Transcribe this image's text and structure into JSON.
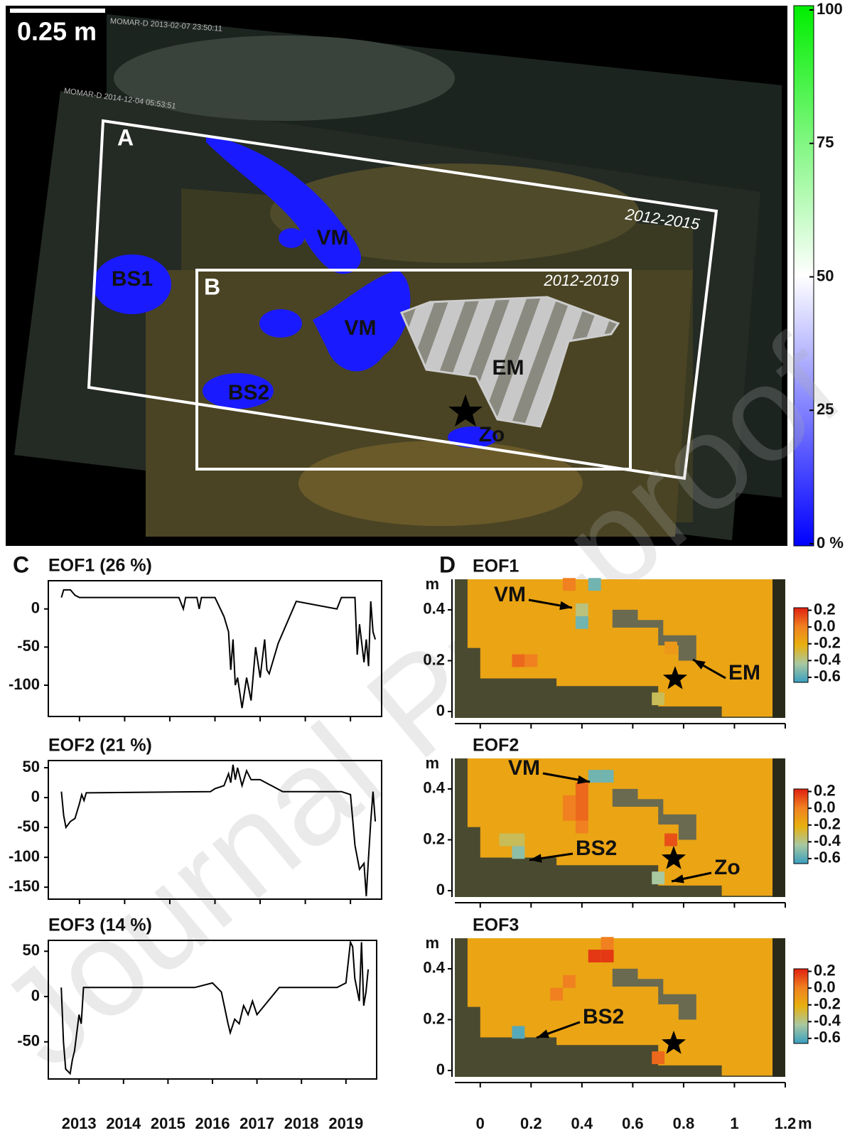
{
  "scale_bar": "0.25 m",
  "photo": {
    "timestamps": [
      "MOMAR-D 2013-02-07 23:50:11",
      "MOMAR-D 2014-12-04 05:53:51"
    ],
    "regions": [
      {
        "label": "A",
        "period": "2012-2015"
      },
      {
        "label": "B",
        "period": "2012-2019"
      }
    ],
    "labels": [
      "VM",
      "BS1",
      "VM",
      "BS2",
      "EM",
      "Zo"
    ],
    "colorbar": {
      "lim": [
        0,
        100
      ],
      "ticks": [
        100,
        75,
        50,
        25,
        {
          "value": 0,
          "label": "0 %"
        }
      ]
    }
  },
  "panel_labels": [
    "C",
    "D"
  ],
  "chart_data": [
    {
      "type": "line",
      "title": "EOF1 (26 %)",
      "color": "#000000",
      "xtick_labels": false,
      "x": [
        2012.6,
        2012.65,
        2012.8,
        2012.9,
        2013.0,
        2015.2,
        2015.3,
        2015.35,
        2015.6,
        2015.65,
        2015.7,
        2016.0,
        2016.2,
        2016.3,
        2016.35,
        2016.4,
        2016.45,
        2016.5,
        2016.6,
        2016.7,
        2016.8,
        2016.9,
        2017.0,
        2017.1,
        2017.15,
        2017.2,
        2017.4,
        2017.8,
        2018.7,
        2018.8,
        2019.1,
        2019.15,
        2019.2,
        2019.3,
        2019.35,
        2019.4,
        2019.45,
        2019.5,
        2019.55
      ],
      "values": [
        15,
        25,
        25,
        18,
        15,
        15,
        0,
        15,
        15,
        0,
        15,
        15,
        -10,
        -30,
        -80,
        -40,
        -100,
        -90,
        -130,
        -90,
        -120,
        -50,
        -90,
        -40,
        -80,
        -85,
        -45,
        10,
        0,
        15,
        15,
        -60,
        -20,
        -70,
        -40,
        -75,
        10,
        -30,
        -40
      ],
      "xlim": [
        2012.31,
        2019.69
      ],
      "xticks": [
        2013,
        2014,
        2015,
        2016,
        2017,
        2018,
        2019
      ],
      "ylim": [
        -141,
        37
      ],
      "yticks": [
        0,
        -50,
        -100
      ]
    },
    {
      "type": "line",
      "title": "EOF2 (21 %)",
      "color": "#000000",
      "xtick_labels": false,
      "x": [
        2012.6,
        2012.65,
        2012.7,
        2012.8,
        2012.9,
        2013.0,
        2013.05,
        2013.1,
        2013.15,
        2015.9,
        2016.0,
        2016.2,
        2016.3,
        2016.35,
        2016.4,
        2016.45,
        2016.5,
        2016.6,
        2016.7,
        2016.8,
        2017.0,
        2017.5,
        2018.8,
        2019.0,
        2019.1,
        2019.2,
        2019.3,
        2019.35,
        2019.4,
        2019.45,
        2019.5,
        2019.55
      ],
      "values": [
        10,
        -30,
        -50,
        -40,
        -35,
        -10,
        5,
        -5,
        8,
        10,
        15,
        20,
        40,
        25,
        55,
        30,
        50,
        20,
        45,
        30,
        30,
        10,
        10,
        5,
        -80,
        -120,
        -110,
        -165,
        -100,
        -40,
        10,
        -40
      ],
      "xlim": [
        2012.31,
        2019.69
      ],
      "xticks": [
        2013,
        2014,
        2015,
        2016,
        2017,
        2018,
        2019
      ],
      "ylim": [
        -170,
        62
      ],
      "yticks": [
        50,
        0,
        -50,
        -100,
        -150
      ]
    },
    {
      "type": "line",
      "title": "EOF3 (14 %)",
      "color": "#000000",
      "xtick_labels": true,
      "x": [
        2012.6,
        2012.65,
        2012.7,
        2012.8,
        2012.85,
        2012.9,
        2013.0,
        2013.05,
        2013.1,
        2015.6,
        2016.0,
        2016.2,
        2016.35,
        2016.4,
        2016.5,
        2016.6,
        2016.7,
        2016.8,
        2016.9,
        2017.0,
        2017.5,
        2018.8,
        2019.0,
        2019.1,
        2019.15,
        2019.2,
        2019.3,
        2019.35,
        2019.4,
        2019.45,
        2019.5
      ],
      "values": [
        10,
        -50,
        -80,
        -85,
        -70,
        -60,
        -20,
        -30,
        10,
        10,
        15,
        5,
        -30,
        -40,
        -25,
        -30,
        -10,
        -20,
        -5,
        -20,
        10,
        10,
        15,
        60,
        55,
        20,
        -5,
        60,
        -10,
        5,
        30
      ],
      "xlim": [
        2012.31,
        2019.69
      ],
      "xticks": [
        2013,
        2014,
        2015,
        2016,
        2017,
        2018,
        2019
      ],
      "ylim": [
        -91,
        62
      ],
      "yticks": [
        50,
        0,
        -50
      ]
    }
  ],
  "maps": [
    {
      "title": "EOF1",
      "y_unit": "m",
      "xtick_labels": false,
      "xlim": [
        -0.1,
        1.2
      ],
      "ylim": [
        -0.025,
        0.52
      ],
      "xticks": [
        0,
        0.2,
        0.4,
        0.6,
        0.8,
        1,
        1.2
      ],
      "yticks": [
        0,
        0.2,
        0.4
      ],
      "background_value": -0.15,
      "cells": [
        {
          "x": 0.45,
          "y": 0.5,
          "value": -0.5
        },
        {
          "x": 0.4,
          "y": 0.35,
          "value": -0.5
        },
        {
          "x": 0.4,
          "y": 0.4,
          "value": -0.35
        },
        {
          "x": 0.35,
          "y": 0.5,
          "value": 0
        },
        {
          "x": 0.15,
          "y": 0.2,
          "value": 0.05
        },
        {
          "x": 0.2,
          "y": 0.2,
          "value": 0
        },
        {
          "x": 0.75,
          "y": 0.25,
          "value": -0.1
        },
        {
          "x": 0.7,
          "y": 0.05,
          "value": -0.3
        }
      ],
      "colorbar": {
        "lim": [
          -0.66,
          0.23
        ],
        "ticks": [
          0.2,
          {
            "value": 0,
            "label": "0.0"
          },
          -0.2,
          -0.4,
          -0.6
        ]
      },
      "annotations": [
        "VM",
        "EM"
      ]
    },
    {
      "title": "EOF2",
      "y_unit": "m",
      "xtick_labels": false,
      "xlim": [
        -0.1,
        1.2
      ],
      "ylim": [
        -0.025,
        0.52
      ],
      "xticks": [
        0,
        0.2,
        0.4,
        0.6,
        0.8,
        1,
        1.2
      ],
      "yticks": [
        0,
        0.2,
        0.4
      ],
      "background_value": -0.15,
      "cells": [
        {
          "x": 0.45,
          "y": 0.45,
          "value": -0.5
        },
        {
          "x": 0.5,
          "y": 0.45,
          "value": -0.5
        },
        {
          "x": 0.4,
          "y": 0.4,
          "value": 0.05
        },
        {
          "x": 0.4,
          "y": 0.35,
          "value": 0.05
        },
        {
          "x": 0.35,
          "y": 0.35,
          "value": 0
        },
        {
          "x": 0.4,
          "y": 0.3,
          "value": 0.05
        },
        {
          "x": 0.35,
          "y": 0.3,
          "value": 0
        },
        {
          "x": 0.4,
          "y": 0.25,
          "value": 0
        },
        {
          "x": 0.15,
          "y": 0.15,
          "value": -0.45
        },
        {
          "x": 0.1,
          "y": 0.2,
          "value": -0.3
        },
        {
          "x": 0.15,
          "y": 0.2,
          "value": -0.3
        },
        {
          "x": 0.75,
          "y": 0.2,
          "value": 0.1
        },
        {
          "x": 0.7,
          "y": 0.05,
          "value": -0.4
        }
      ],
      "colorbar": {
        "lim": [
          -0.66,
          0.23
        ],
        "ticks": [
          0.2,
          {
            "value": 0,
            "label": "0.0"
          },
          -0.2,
          -0.4,
          -0.6
        ]
      },
      "annotations": [
        "VM",
        "BS2",
        "Zo"
      ]
    },
    {
      "title": "EOF3",
      "y_unit": "m",
      "x_unit": "m",
      "xtick_labels": true,
      "xlim": [
        -0.1,
        1.2
      ],
      "ylim": [
        -0.025,
        0.52
      ],
      "xticks": [
        0,
        0.2,
        0.4,
        0.6,
        0.8,
        1,
        1.2
      ],
      "yticks": [
        0,
        0.2,
        0.4
      ],
      "background_value": -0.15,
      "cells": [
        {
          "x": 0.45,
          "y": 0.45,
          "value": 0.15
        },
        {
          "x": 0.5,
          "y": 0.45,
          "value": 0.15
        },
        {
          "x": 0.5,
          "y": 0.5,
          "value": 0
        },
        {
          "x": 0.15,
          "y": 0.15,
          "value": -0.55
        },
        {
          "x": 0.7,
          "y": 0.05,
          "value": 0.05
        },
        {
          "x": 0.3,
          "y": 0.3,
          "value": 0
        },
        {
          "x": 0.35,
          "y": 0.35,
          "value": 0
        }
      ],
      "colorbar": {
        "lim": [
          -0.66,
          0.23
        ],
        "ticks": [
          0.2,
          {
            "value": 0,
            "label": "0.0"
          },
          -0.2,
          -0.4,
          -0.6
        ]
      },
      "annotations": [
        "BS2"
      ]
    }
  ],
  "watermark": "Journal Pre-proof"
}
